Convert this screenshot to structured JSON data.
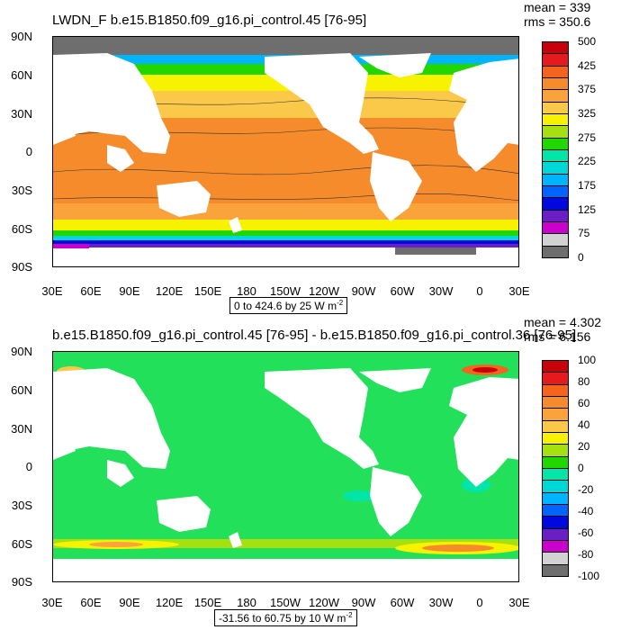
{
  "top": {
    "title": "LWDN_F b.e15.B1850.f09_g16.pi_control.45 [76-95]",
    "mean": "mean = 339",
    "rms": "rms = 350.6",
    "range_text": "0 to 424.6 by 25  W m",
    "range_exp": "-2",
    "colorbar_labels": [
      "500",
      "425",
      "375",
      "325",
      "275",
      "225",
      "175",
      "125",
      "75",
      "0"
    ],
    "colorbar_colors": [
      "#c8000a",
      "#e41a1c",
      "#f4641e",
      "#f68b2c",
      "#f9a33a",
      "#fbc94a",
      "#f6f200",
      "#a6e010",
      "#22d600",
      "#00e6a8",
      "#00d8d8",
      "#00b4ff",
      "#0064ff",
      "#0008e0",
      "#6a1fc4",
      "#cc00cc",
      "#d2d2d2",
      "#6e6e6e"
    ]
  },
  "bottom": {
    "title": "b.e15.B1850.f09_g16.pi_control.45 [76-95] - b.e15.B1850.f09_g16.pi_control.36 [76-95]",
    "mean": "mean = 4.302",
    "rms": "rms = 6.156",
    "range_text": "-31.56 to 60.75 by 10  W m",
    "range_exp": "-2",
    "colorbar_labels": [
      "100",
      "80",
      "60",
      "40",
      "20",
      "0",
      "-20",
      "-40",
      "-60",
      "-80",
      "-100"
    ],
    "colorbar_colors": [
      "#c8000a",
      "#e41a1c",
      "#f4641e",
      "#f68b2c",
      "#f9a33a",
      "#fbc94a",
      "#f6f200",
      "#a6e010",
      "#22d600",
      "#00e6a8",
      "#00d8d8",
      "#00b4ff",
      "#0064ff",
      "#0008e0",
      "#6a1fc4",
      "#cc00cc",
      "#d2d2d2",
      "#6e6e6e"
    ]
  },
  "axes": {
    "lat_labels": [
      "90N",
      "60N",
      "30N",
      "0",
      "30S",
      "60S",
      "90S"
    ],
    "lon_labels": [
      "30E",
      "60E",
      "90E",
      "120E",
      "150E",
      "180",
      "150W",
      "120W",
      "90W",
      "60W",
      "30W",
      "0",
      "30E"
    ]
  },
  "colors": {
    "land": "#ffffff",
    "ice_dark": "#6e6e6e",
    "diff_green": "#22e05a"
  }
}
